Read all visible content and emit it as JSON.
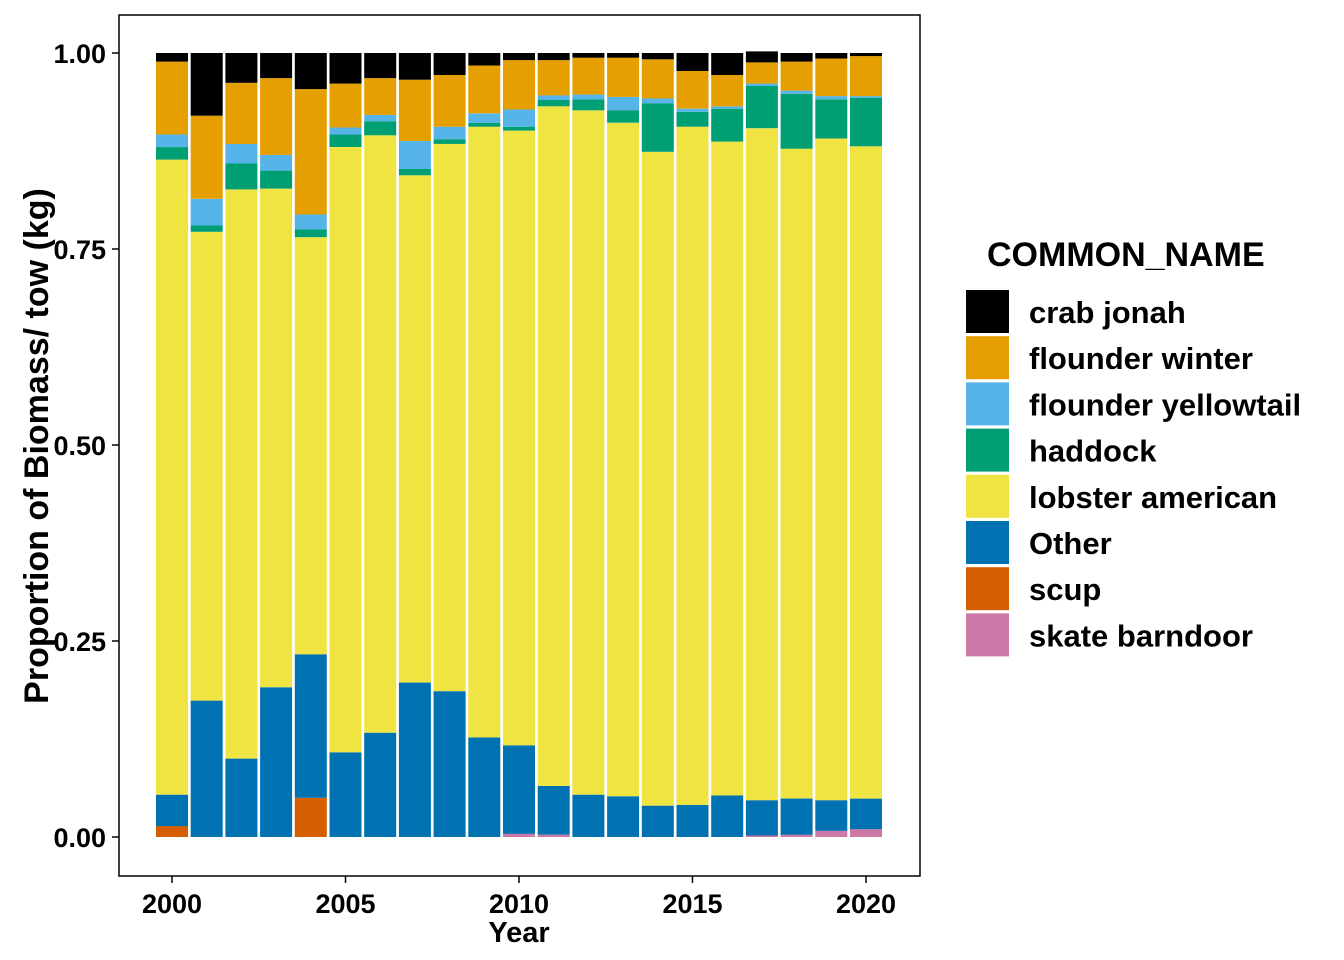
{
  "chart_data": {
    "type": "bar",
    "stacked": true,
    "xlabel": "Year",
    "ylabel": "Proportion of Biomass/ tow (kg)",
    "ylim": [
      0,
      1
    ],
    "y_ticks": [
      "0.00",
      "0.25",
      "0.50",
      "0.75",
      "1.00"
    ],
    "x_ticks": [
      "2000",
      "2005",
      "2010",
      "2015",
      "2020"
    ],
    "legend_title": "COMMON_NAME",
    "legend_position": "right",
    "grid": false,
    "categories": [
      2000,
      2001,
      2002,
      2003,
      2004,
      2005,
      2006,
      2007,
      2008,
      2009,
      2010,
      2011,
      2012,
      2013,
      2014,
      2015,
      2016,
      2017,
      2018,
      2019,
      2020
    ],
    "series": [
      {
        "name": "skate barndoor",
        "color": "#CC79A7",
        "values": [
          0,
          0,
          0,
          0,
          0,
          0,
          0,
          0,
          0,
          0,
          0.004,
          0.003,
          0,
          0,
          0,
          0,
          0,
          0.002,
          0.003,
          0.008,
          0.01
        ]
      },
      {
        "name": "scup",
        "color": "#D55E00",
        "values": [
          0.014,
          0,
          0,
          0,
          0.05,
          0,
          0,
          0,
          0,
          0,
          0,
          0,
          0,
          0,
          0,
          0,
          0,
          0,
          0,
          0,
          0
        ]
      },
      {
        "name": "Other",
        "color": "#0072B2",
        "values": [
          0.04,
          0.174,
          0.1,
          0.191,
          0.183,
          0.108,
          0.133,
          0.197,
          0.186,
          0.127,
          0.113,
          0.062,
          0.054,
          0.052,
          0.04,
          0.041,
          0.053,
          0.045,
          0.046,
          0.039,
          0.039
        ]
      },
      {
        "name": "lobster american",
        "color": "#F0E442",
        "values": [
          0.81,
          0.598,
          0.726,
          0.636,
          0.532,
          0.772,
          0.762,
          0.647,
          0.698,
          0.779,
          0.784,
          0.867,
          0.873,
          0.859,
          0.834,
          0.865,
          0.834,
          0.857,
          0.829,
          0.844,
          0.832
        ]
      },
      {
        "name": "haddock",
        "color": "#009E73",
        "values": [
          0.016,
          0.008,
          0.033,
          0.023,
          0.01,
          0.016,
          0.018,
          0.008,
          0.006,
          0.005,
          0.005,
          0.008,
          0.014,
          0.016,
          0.062,
          0.019,
          0.042,
          0.054,
          0.07,
          0.05,
          0.062
        ]
      },
      {
        "name": "flounder yellowtail",
        "color": "#56B4E9",
        "values": [
          0.016,
          0.034,
          0.025,
          0.02,
          0.019,
          0.009,
          0.008,
          0.036,
          0.016,
          0.012,
          0.022,
          0.006,
          0.006,
          0.017,
          0.006,
          0.004,
          0.003,
          0.003,
          0.004,
          0.004,
          0.002
        ]
      },
      {
        "name": "flounder winter",
        "color": "#E69F00",
        "values": [
          0.093,
          0.106,
          0.078,
          0.098,
          0.16,
          0.056,
          0.047,
          0.078,
          0.066,
          0.061,
          0.063,
          0.045,
          0.047,
          0.05,
          0.05,
          0.048,
          0.04,
          0.027,
          0.037,
          0.048,
          0.051
        ]
      },
      {
        "name": "crab jonah",
        "color": "#000000",
        "values": [
          0.011,
          0.08,
          0.038,
          0.032,
          0.046,
          0.039,
          0.032,
          0.034,
          0.028,
          0.016,
          0.009,
          0.009,
          0.006,
          0.006,
          0.008,
          0.023,
          0.028,
          0.014,
          0.011,
          0.007,
          0.004
        ]
      }
    ],
    "legend_order": [
      "crab jonah",
      "flounder winter",
      "flounder yellowtail",
      "haddock",
      "lobster american",
      "Other",
      "scup",
      "skate barndoor"
    ]
  }
}
